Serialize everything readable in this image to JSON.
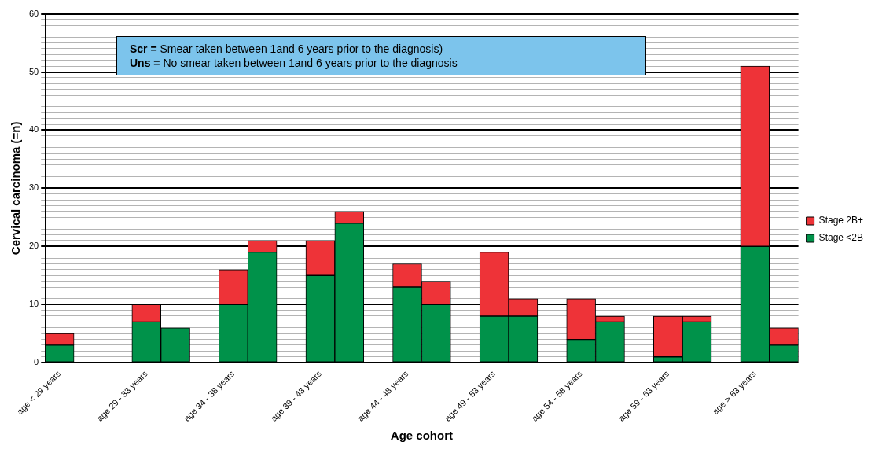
{
  "chart_data": {
    "type": "bar",
    "stacked": true,
    "xlabel": "Age cohort",
    "ylabel": "Cervical carcinoma (=n)",
    "categories": [
      "age < 29 years",
      null,
      null,
      "age 29 - 33 years",
      null,
      null,
      "age 34 - 38 years",
      null,
      null,
      "age 39 - 43 years",
      null,
      null,
      "age 44 - 48 years",
      null,
      null,
      "age 49 - 53 years",
      null,
      null,
      "age 54 - 58 years",
      null,
      null,
      "age 59 - 63 years",
      null,
      null,
      "age > 63 years",
      null
    ],
    "series": [
      {
        "name": "Stage <2B",
        "color": "#00924a",
        "values": [
          3,
          0,
          null,
          7,
          6,
          null,
          10,
          19,
          null,
          15,
          24,
          null,
          13,
          10,
          null,
          8,
          8,
          null,
          4,
          7,
          null,
          1,
          7,
          null,
          20,
          3
        ]
      },
      {
        "name": "Stage 2B+",
        "color": "#ee3338",
        "values": [
          2,
          0,
          null,
          3,
          0,
          null,
          6,
          2,
          null,
          6,
          2,
          null,
          4,
          4,
          null,
          11,
          3,
          null,
          7,
          1,
          null,
          7,
          1,
          null,
          31,
          3
        ]
      }
    ],
    "ylim": [
      0,
      60
    ],
    "yticks": [
      0,
      {
        "value": 1,
        "label": null
      },
      {
        "value": 2,
        "label": null
      },
      {
        "value": 3,
        "label": null
      },
      {
        "value": 4,
        "label": null
      },
      {
        "value": 5,
        "label": null
      },
      {
        "value": 6,
        "label": null
      },
      {
        "value": 7,
        "label": null
      },
      {
        "value": 8,
        "label": null
      },
      {
        "value": 9,
        "label": null
      },
      10,
      {
        "value": 11,
        "label": null
      },
      {
        "value": 12,
        "label": null
      },
      {
        "value": 13,
        "label": null
      },
      {
        "value": 14,
        "label": null
      },
      {
        "value": 15,
        "label": null
      },
      {
        "value": 16,
        "label": null
      },
      {
        "value": 17,
        "label": null
      },
      {
        "value": 18,
        "label": null
      },
      {
        "value": 19,
        "label": null
      },
      20,
      {
        "value": 21,
        "label": null
      },
      {
        "value": 22,
        "label": null
      },
      {
        "value": 23,
        "label": null
      },
      {
        "value": 24,
        "label": null
      },
      {
        "value": 25,
        "label": null
      },
      {
        "value": 26,
        "label": null
      },
      {
        "value": 27,
        "label": null
      },
      {
        "value": 28,
        "label": null
      },
      {
        "value": 29,
        "label": null
      },
      30,
      {
        "value": 31,
        "label": null
      },
      {
        "value": 32,
        "label": null
      },
      {
        "value": 33,
        "label": null
      },
      {
        "value": 34,
        "label": null
      },
      {
        "value": 35,
        "label": null
      },
      {
        "value": 36,
        "label": null
      },
      {
        "value": 37,
        "label": null
      },
      {
        "value": 38,
        "label": null
      },
      {
        "value": 39,
        "label": null
      },
      40,
      {
        "value": 41,
        "label": null
      },
      {
        "value": 42,
        "label": null
      },
      {
        "value": 43,
        "label": null
      },
      {
        "value": 44,
        "label": null
      },
      {
        "value": 45,
        "label": null
      },
      {
        "value": 46,
        "label": null
      },
      {
        "value": 47,
        "label": null
      },
      {
        "value": 48,
        "label": null
      },
      {
        "value": 49,
        "label": null
      },
      50,
      {
        "value": 51,
        "label": null
      },
      {
        "value": 52,
        "label": null
      },
      {
        "value": 53,
        "label": null
      },
      {
        "value": 54,
        "label": null
      },
      {
        "value": 55,
        "label": null
      },
      {
        "value": 56,
        "label": null
      },
      {
        "value": 57,
        "label": null
      },
      {
        "value": 58,
        "label": null
      },
      {
        "value": 59,
        "label": null
      },
      60
    ],
    "grid": "y",
    "legend": "right",
    "annotations": [
      "Scr = Smear taken between 1and 6 years prior to the diagnosis)",
      "Uns = No smear taken between 1and 6 years prior to the diagnosis"
    ]
  }
}
